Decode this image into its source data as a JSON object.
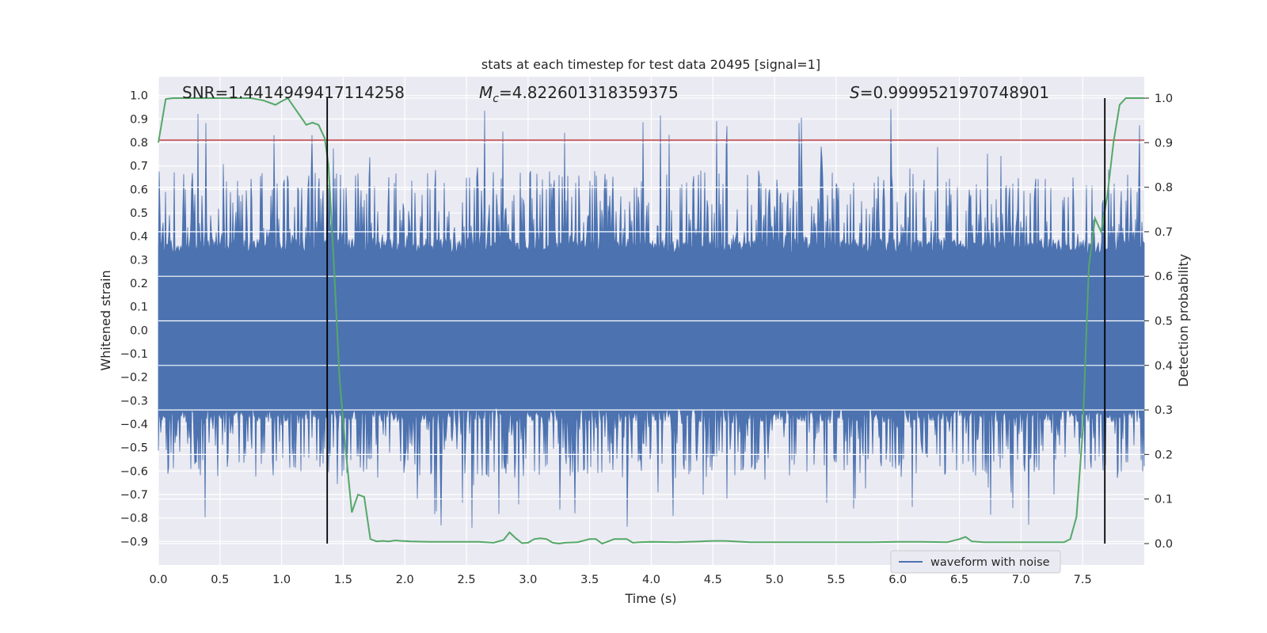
{
  "chart_data": {
    "type": "line",
    "title": "stats at each timestep for test data 20495 [signal=1]",
    "xlabel": "Time (s)",
    "ylabel": "Whitened strain",
    "ylabel_right": "Detection probability",
    "xlim": [
      0.0,
      8.0
    ],
    "ylim": [
      -1.0,
      1.08
    ],
    "ylim_right": [
      -0.048,
      1.048
    ],
    "x_ticks": [
      0.0,
      0.5,
      1.0,
      1.5,
      2.0,
      2.5,
      3.0,
      3.5,
      4.0,
      4.5,
      5.0,
      5.5,
      6.0,
      6.5,
      7.0,
      7.5
    ],
    "x_tick_labels": [
      "0.0",
      "0.5",
      "1.0",
      "1.5",
      "2.0",
      "2.5",
      "3.0",
      "3.5",
      "4.0",
      "4.5",
      "5.0",
      "5.5",
      "6.0",
      "6.5",
      "7.0",
      "7.5"
    ],
    "y_ticks": [
      -0.9,
      -0.8,
      -0.7,
      -0.6,
      -0.5,
      -0.4,
      -0.3,
      -0.2,
      -0.1,
      0.0,
      0.1,
      0.2,
      0.3,
      0.4,
      0.5,
      0.6,
      0.7,
      0.8,
      0.9,
      1.0
    ],
    "y_tick_labels": [
      "−0.9",
      "−0.8",
      "−0.7",
      "−0.6",
      "−0.5",
      "−0.4",
      "−0.3",
      "−0.2",
      "−0.1",
      "0.0",
      "0.1",
      "0.2",
      "0.3",
      "0.4",
      "0.5",
      "0.6",
      "0.7",
      "0.8",
      "0.9",
      "1.0"
    ],
    "y_right_ticks": [
      0.0,
      0.1,
      0.2,
      0.3,
      0.4,
      0.5,
      0.6,
      0.7,
      0.8,
      0.9,
      1.0
    ],
    "y_right_tick_labels": [
      "0.0",
      "0.1",
      "0.2",
      "0.3",
      "0.4",
      "0.5",
      "0.6",
      "0.7",
      "0.8",
      "0.9",
      "1.0"
    ],
    "annotations": {
      "snr": "SNR=1.4414949417114258",
      "mc_symbol": "M",
      "mc_sub": "c",
      "mc_value": "=4.822601318359375",
      "s_symbol": "S",
      "s_value": "=0.9999521970748901"
    },
    "legend": {
      "label": "waveform with noise",
      "loc": "lower right"
    },
    "threshold_line": {
      "y": 0.81,
      "color": "#c44e52"
    },
    "vertical_lines": [
      1.37,
      7.68
    ],
    "noise_envelope": {
      "core_amplitude": 0.33,
      "spike_max": 1.0,
      "spike_min": -0.89
    },
    "series": [
      {
        "name": "waveform with noise",
        "color": "#4c72b0",
        "axis": "left"
      },
      {
        "name": "detection probability",
        "color": "#55a868",
        "axis": "right",
        "x": [
          0.0,
          0.06,
          0.12,
          0.25,
          0.5,
          0.75,
          0.85,
          0.95,
          1.0,
          1.05,
          1.1,
          1.15,
          1.2,
          1.25,
          1.3,
          1.35,
          1.38,
          1.42,
          1.47,
          1.52,
          1.57,
          1.62,
          1.67,
          1.72,
          1.77,
          1.82,
          1.87,
          1.92,
          1.97,
          2.05,
          2.2,
          2.4,
          2.6,
          2.72,
          2.8,
          2.85,
          2.9,
          2.95,
          3.0,
          3.05,
          3.1,
          3.15,
          3.2,
          3.25,
          3.3,
          3.4,
          3.5,
          3.55,
          3.6,
          3.65,
          3.7,
          3.75,
          3.8,
          3.85,
          3.9,
          4.0,
          4.2,
          4.4,
          4.5,
          4.6,
          4.8,
          5.0,
          5.2,
          5.4,
          5.6,
          5.8,
          6.0,
          6.2,
          6.4,
          6.5,
          6.55,
          6.6,
          6.7,
          6.8,
          7.0,
          7.2,
          7.35,
          7.4,
          7.45,
          7.5,
          7.55,
          7.6,
          7.65,
          7.7,
          7.75,
          7.8,
          7.85,
          7.9,
          7.95,
          8.0
        ],
        "y": [
          0.9,
          0.998,
          1.0,
          1.0,
          1.0,
          1.0,
          0.995,
          0.985,
          0.993,
          1.0,
          0.98,
          0.96,
          0.94,
          0.945,
          0.94,
          0.91,
          0.85,
          0.65,
          0.37,
          0.21,
          0.07,
          0.11,
          0.105,
          0.01,
          0.005,
          0.006,
          0.005,
          0.007,
          0.006,
          0.005,
          0.004,
          0.004,
          0.004,
          0.002,
          0.008,
          0.025,
          0.012,
          0.001,
          0.002,
          0.01,
          0.012,
          0.01,
          0.002,
          0.0,
          0.002,
          0.003,
          0.01,
          0.01,
          0.0,
          0.005,
          0.01,
          0.01,
          0.01,
          0.002,
          0.003,
          0.004,
          0.003,
          0.005,
          0.006,
          0.006,
          0.003,
          0.003,
          0.003,
          0.003,
          0.003,
          0.003,
          0.004,
          0.004,
          0.003,
          0.01,
          0.015,
          0.005,
          0.003,
          0.003,
          0.003,
          0.003,
          0.003,
          0.01,
          0.06,
          0.25,
          0.62,
          0.73,
          0.7,
          0.78,
          0.9,
          0.985,
          1.0,
          1.0,
          1.0,
          1.0
        ]
      }
    ]
  }
}
